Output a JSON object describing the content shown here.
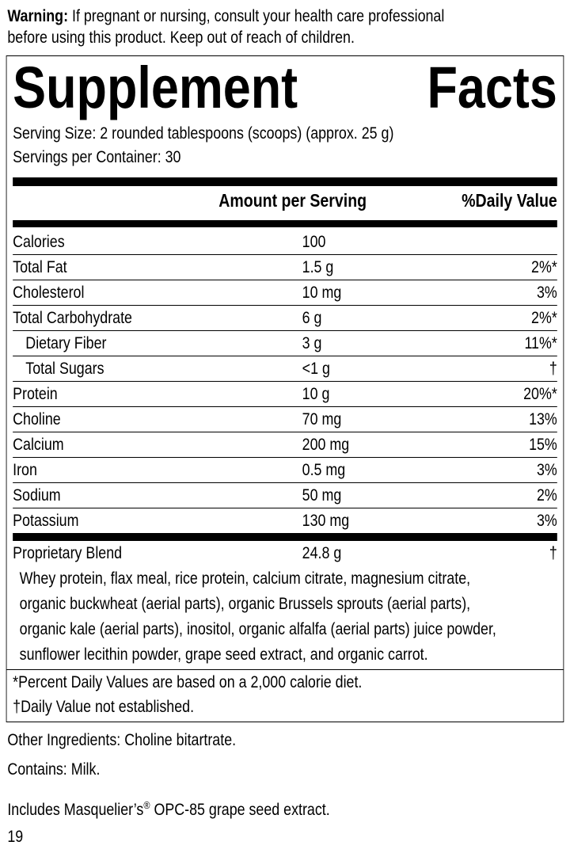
{
  "warning": {
    "label": "Warning:",
    "text": " If pregnant or nursing, consult your health care professional",
    "text2": "before using this product. Keep out of reach of children."
  },
  "facts": {
    "title_word1": "Supplement",
    "title_word2": "Facts",
    "serving_size": "Serving Size: 2 rounded tablespoons (scoops) (approx. 25 g)",
    "servings_per_container": "Servings per Container: 30",
    "header_amount": "Amount per Serving",
    "header_dv": "%Daily Value",
    "rows": [
      {
        "name": "Calories",
        "amount": "100",
        "dv": ""
      },
      {
        "name": "Total Fat",
        "amount": "1.5 g",
        "dv": "2%*"
      },
      {
        "name": "Cholesterol",
        "amount": "10 mg",
        "dv": "3%"
      },
      {
        "name": "Total Carbohydrate",
        "amount": "6 g",
        "dv": "2%*"
      },
      {
        "name": "Dietary Fiber",
        "amount": "3 g",
        "dv": "11%*",
        "indent": true
      },
      {
        "name": "Total Sugars",
        "amount": "<1 g",
        "dv": "†",
        "indent": true
      },
      {
        "name": "Protein",
        "amount": "10 g",
        "dv": "20%*"
      },
      {
        "name": "Choline",
        "amount": "70 mg",
        "dv": "13%"
      },
      {
        "name": "Calcium",
        "amount": "200 mg",
        "dv": "15%"
      },
      {
        "name": "Iron",
        "amount": "0.5 mg",
        "dv": "3%"
      },
      {
        "name": "Sodium",
        "amount": "50 mg",
        "dv": "2%"
      },
      {
        "name": "Potassium",
        "amount": "130 mg",
        "dv": "3%"
      }
    ],
    "blend": {
      "name": "Proprietary Blend",
      "amount": "24.8 g",
      "dv": "†",
      "ingredients": [
        "Whey protein, flax meal, rice protein, calcium citrate, magnesium citrate,",
        "organic buckwheat (aerial parts), organic Brussels sprouts (aerial parts),",
        "organic kale (aerial parts), inositol, organic alfalfa (aerial parts) juice powder,",
        "sunflower lecithin powder, grape seed extract, and organic carrot."
      ]
    },
    "footnote1": "*Percent Daily Values are based on a 2,000 calorie diet.",
    "footnote2": "†Daily Value not established."
  },
  "other_ingredients": "Other Ingredients: Choline bitartrate.",
  "contains": "Contains: Milk.",
  "includes": {
    "text": "Includes Masquelier’s",
    "reg": "®",
    "text2": " OPC-85 grape seed extract."
  },
  "page_number": "19"
}
